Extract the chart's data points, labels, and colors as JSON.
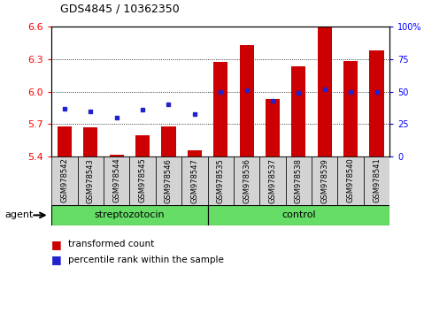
{
  "title": "GDS4845 / 10362350",
  "samples": [
    "GSM978542",
    "GSM978543",
    "GSM978544",
    "GSM978545",
    "GSM978546",
    "GSM978547",
    "GSM978535",
    "GSM978536",
    "GSM978537",
    "GSM978538",
    "GSM978539",
    "GSM978540",
    "GSM978541"
  ],
  "groups": [
    "streptozotocin",
    "streptozotocin",
    "streptozotocin",
    "streptozotocin",
    "streptozotocin",
    "streptozotocin",
    "control",
    "control",
    "control",
    "control",
    "control",
    "control",
    "control"
  ],
  "transformed_count": [
    5.68,
    5.67,
    5.42,
    5.6,
    5.68,
    5.46,
    6.27,
    6.43,
    5.93,
    6.23,
    6.59,
    6.28,
    6.38
  ],
  "percentile_rank": [
    37,
    35,
    30,
    36,
    40,
    33,
    50,
    51,
    43,
    49,
    52,
    50,
    50
  ],
  "ylim": [
    5.4,
    6.6
  ],
  "yticks": [
    5.4,
    5.7,
    6.0,
    6.3,
    6.6
  ],
  "right_ylim": [
    0,
    100
  ],
  "right_yticks": [
    0,
    25,
    50,
    75,
    100
  ],
  "right_yticklabels": [
    "0",
    "25",
    "50",
    "75",
    "100%"
  ],
  "bar_color": "#cc0000",
  "dot_color": "#2222cc",
  "xtick_bg": "#d3d3d3",
  "group_color": "#66dd66",
  "streptozotocin_label": "streptozotocin",
  "control_label": "control",
  "agent_label": "agent",
  "legend_bar_label": "transformed count",
  "legend_dot_label": "percentile rank within the sample",
  "gridline_color": "#000000",
  "spine_color": "#000000"
}
